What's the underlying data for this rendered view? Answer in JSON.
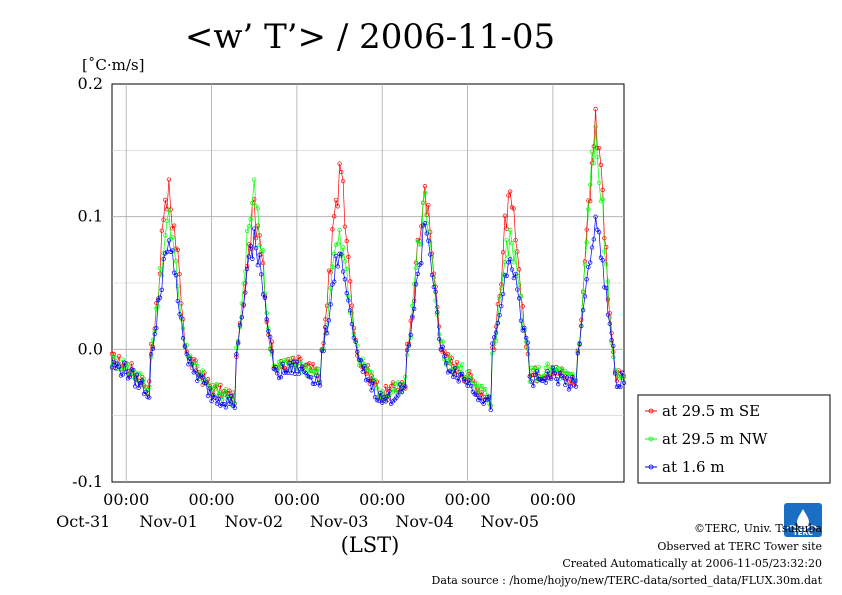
{
  "chart_data": {
    "type": "line",
    "title": "<w’ T’> / 2006-11-05",
    "ylabel": "[˚C·m/s]",
    "xlabel": "(LST)",
    "ylim": [
      -0.1,
      0.2
    ],
    "xlim": [
      "2006-10-30 20:00",
      "2006-11-05 20:00"
    ],
    "y_ticks": [
      "0.2",
      "0.1",
      "0.0",
      "-0.1"
    ],
    "x_ticks": [
      {
        "time": "00:00",
        "date": "Oct-31"
      },
      {
        "time": "00:00",
        "date": "Nov-01"
      },
      {
        "time": "00:00",
        "date": "Nov-02"
      },
      {
        "time": "00:00",
        "date": "Nov-03"
      },
      {
        "time": "00:00",
        "date": "Nov-04"
      },
      {
        "time": "00:00",
        "date": "Nov-05"
      }
    ],
    "grid": true,
    "legend_position": "bottom-right",
    "series": [
      {
        "name": "at 29.5 m SE",
        "color": "#ff0000"
      },
      {
        "name": "at 29.5 m NW",
        "color": "#00ff00"
      },
      {
        "name": "at 1.6 m",
        "color": "#0000ff"
      }
    ],
    "daily_peaks": [
      {
        "day": "Oct-31",
        "values": [
          0.128,
          0.105,
          0.082
        ]
      },
      {
        "day": "Nov-01",
        "values": [
          0.113,
          0.128,
          0.091
        ]
      },
      {
        "day": "Nov-02",
        "values": [
          0.14,
          0.09,
          0.072
        ]
      },
      {
        "day": "Nov-03",
        "values": [
          0.123,
          0.118,
          0.095
        ]
      },
      {
        "day": "Nov-04",
        "values": [
          0.119,
          0.09,
          0.068
        ]
      },
      {
        "day": "Nov-05",
        "values": [
          0.181,
          0.168,
          0.1
        ]
      }
    ]
  },
  "footer": {
    "copyright": "©TERC, Univ. Tsukuba",
    "observed": "Observed at TERC Tower site",
    "created": "Created Automatically at 2006-11-05/23:32:20",
    "source": "Data source : /home/hojyo/new/TERC-data/sorted_data/FLUX.30m.dat"
  },
  "logo": {
    "text": "TERC",
    "color": "#1a6fc4"
  }
}
